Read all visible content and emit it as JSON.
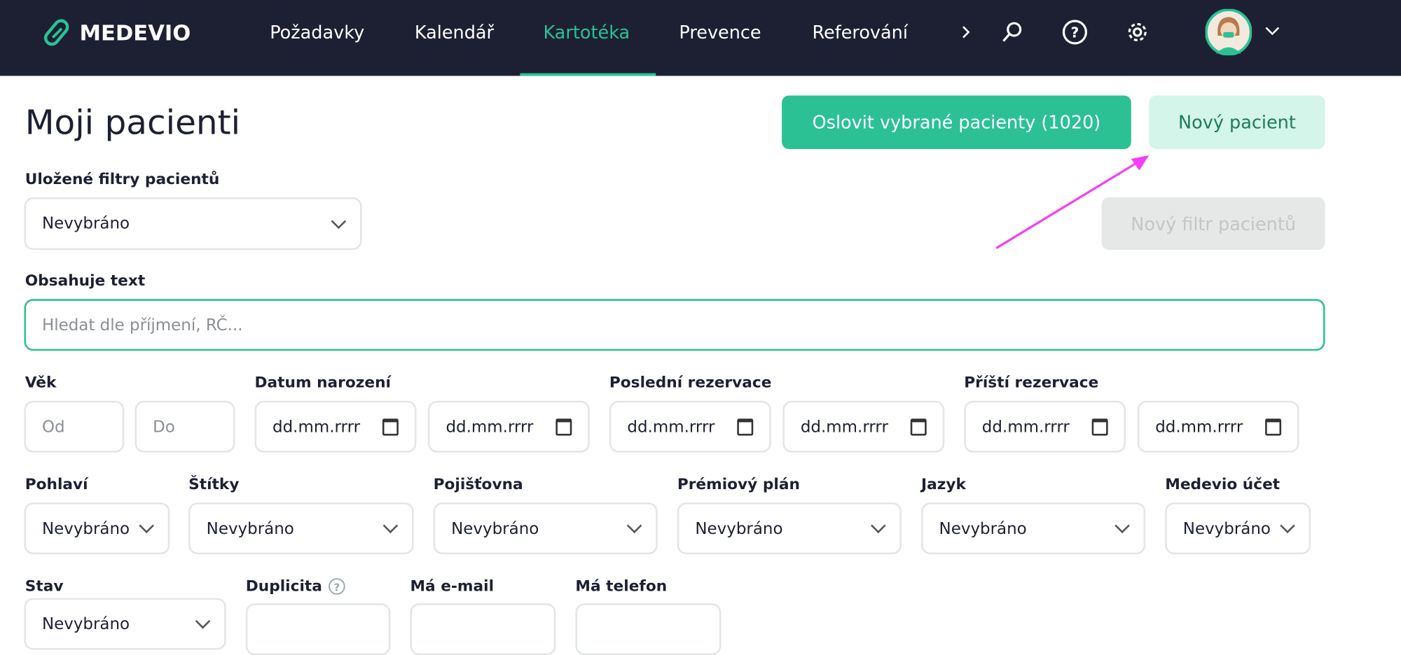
{
  "nav": {
    "brand": "MEDEVIO",
    "items": [
      "Požadavky",
      "Kalendář",
      "Kartotéka",
      "Prevence",
      "Referování"
    ],
    "active": "Kartotéka"
  },
  "colors": {
    "nav_bg": "#1d2033",
    "accent": "#2bc194",
    "secondary_btn_bg": "#d4f5ea",
    "annotation_arrow": "#f53df5"
  },
  "page": {
    "title": "Moji pacienti",
    "contact_button": "Oslovit vybrané pacienty (1020)",
    "new_patient_button": "Nový pacient",
    "new_filter_button": "Nový filtr pacientů"
  },
  "saved_filters": {
    "label": "Uložené filtry pacientů",
    "value": "Nevybráno"
  },
  "search": {
    "label": "Obsahuje text",
    "placeholder": "Hledat dle příjmení, RČ..."
  },
  "age": {
    "label": "Věk",
    "from": "Od",
    "to": "Do"
  },
  "dates": [
    {
      "label": "Datum narození"
    },
    {
      "label": "Poslední rezervace"
    },
    {
      "label": "Příští rezervace"
    }
  ],
  "date_placeholder": "dd.mm.rrrr",
  "selects": [
    {
      "label": "Pohlaví",
      "value": "Nevybráno"
    },
    {
      "label": "Štítky",
      "value": "Nevybráno"
    },
    {
      "label": "Pojišťovna",
      "value": "Nevybráno"
    },
    {
      "label": "Prémiový plán",
      "value": "Nevybráno"
    },
    {
      "label": "Jazyk",
      "value": "Nevybráno"
    },
    {
      "label": "Medevio účet",
      "value": "Nevybráno"
    }
  ],
  "row4": {
    "stav": "Stav",
    "stav_value": "Nevybráno",
    "duplicita": "Duplicita",
    "email": "Má e-mail",
    "phone": "Má telefon"
  }
}
